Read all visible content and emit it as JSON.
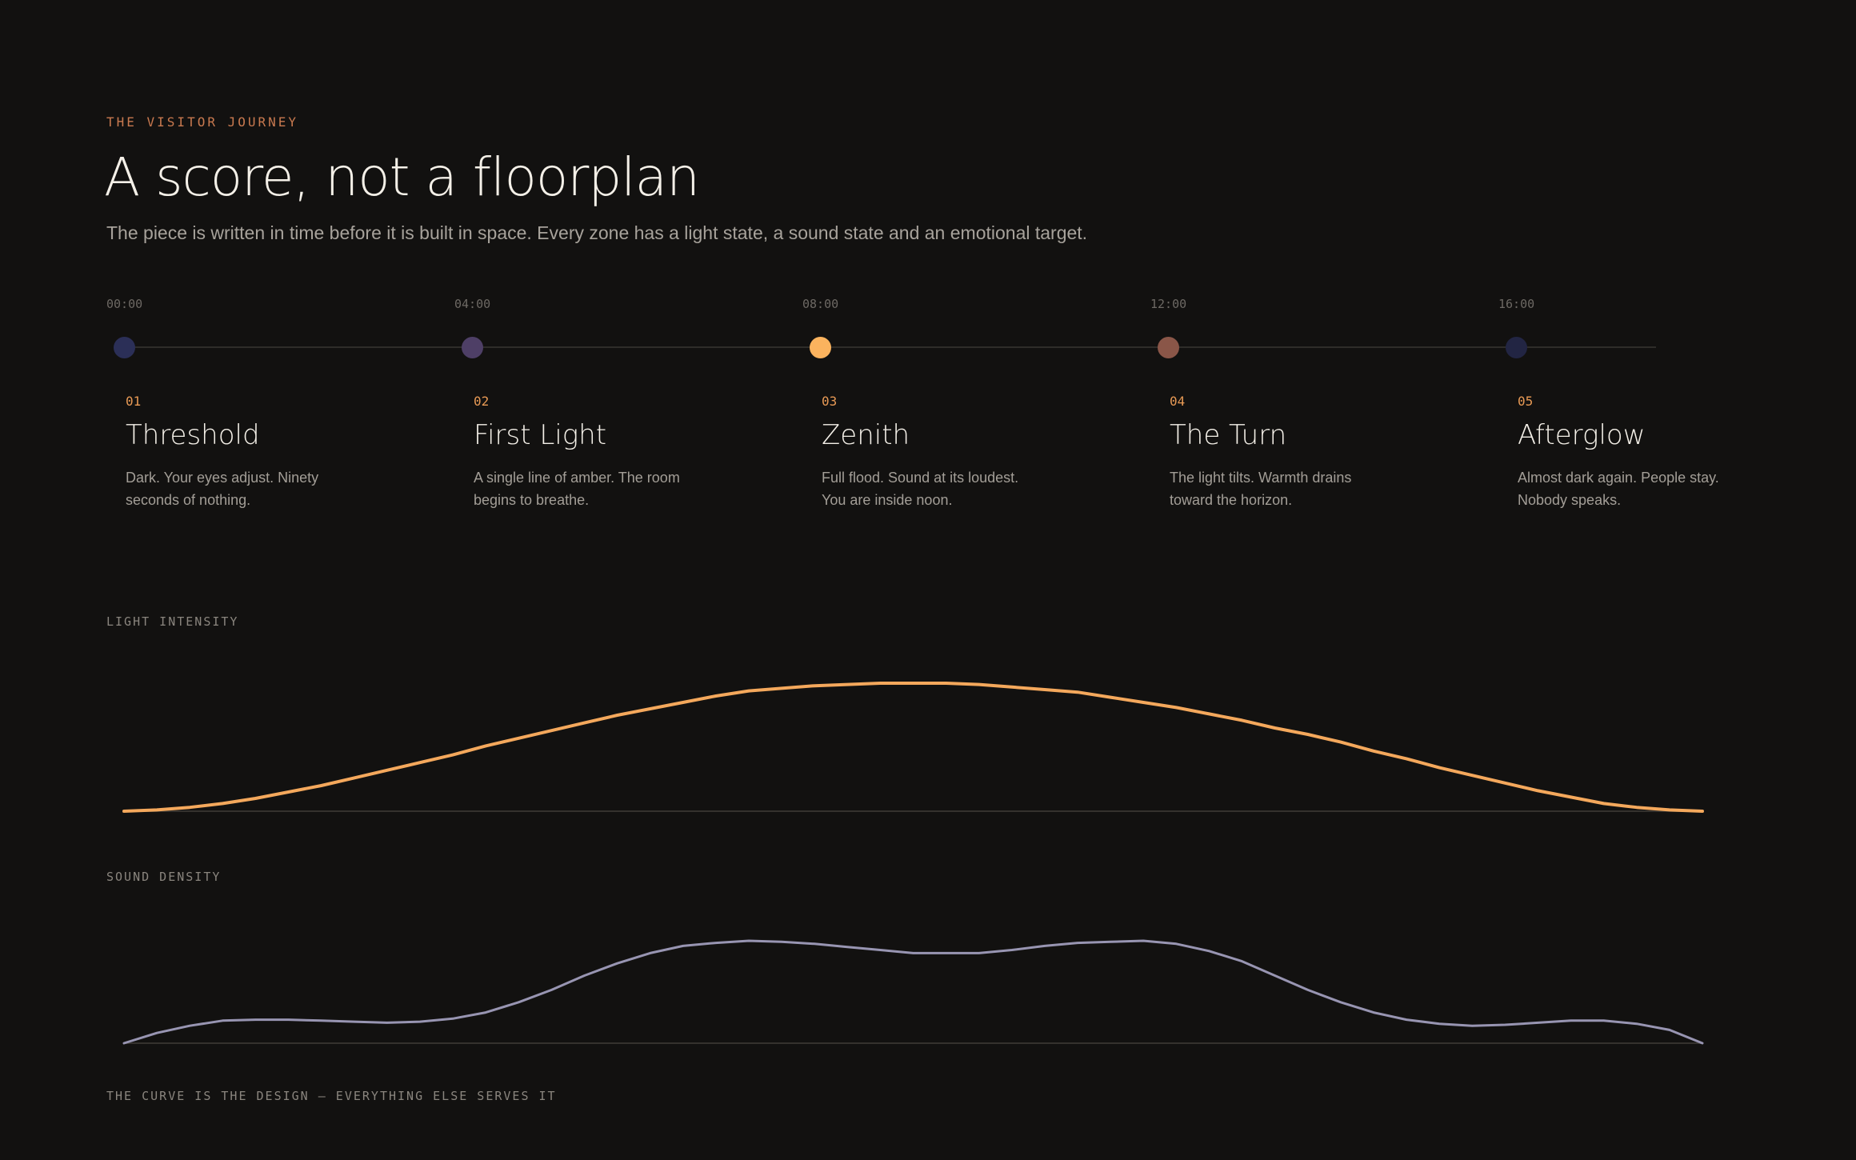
{
  "header": {
    "eyebrow": "THE VISITOR JOURNEY",
    "title": "A score, not a floorplan",
    "subtitle": "The piece is written in time before it is built in space. Every zone has a light state, a sound state and an emotional target."
  },
  "timeline": {
    "times": [
      "00:00",
      "04:00",
      "08:00",
      "12:00",
      "16:00"
    ],
    "stages": [
      {
        "num": "01",
        "name": "Threshold",
        "desc": "Dark. Your eyes adjust. Ninety seconds of nothing.",
        "color": "#2b2f57"
      },
      {
        "num": "02",
        "name": "First Light",
        "desc": "A single line of amber. The room begins to breathe.",
        "color": "#4e3f66"
      },
      {
        "num": "03",
        "name": "Zenith",
        "desc": "Full flood. Sound at its loudest. You are inside noon.",
        "color": "#fbb35e"
      },
      {
        "num": "04",
        "name": "The Turn",
        "desc": "The light tilts. Warmth drains toward the horizon.",
        "color": "#8a5648"
      },
      {
        "num": "05",
        "name": "Afterglow",
        "desc": "Almost dark again. People stay. Nobody speaks.",
        "color": "#222543"
      }
    ]
  },
  "light": {
    "label": "LIGHT INTENSITY",
    "color": "#f4a85c"
  },
  "sound": {
    "label": "SOUND DENSITY",
    "color": "#9895b2"
  },
  "footer": "THE CURVE IS THE DESIGN – EVERYTHING ELSE SERVES IT",
  "chart_data": [
    {
      "type": "line",
      "series": [
        {
          "values": [
            0,
            0.01,
            0.03,
            0.06,
            0.1,
            0.15,
            0.2,
            0.26,
            0.32,
            0.38,
            0.44,
            0.51,
            0.57,
            0.63,
            0.69,
            0.75,
            0.8,
            0.85,
            0.9,
            0.94,
            0.96,
            0.98,
            0.99,
            1.0,
            1.0,
            1.0,
            0.99,
            0.97,
            0.95,
            0.93,
            0.89,
            0.85,
            0.81,
            0.76,
            0.71,
            0.65,
            0.6,
            0.54,
            0.47,
            0.41,
            0.34,
            0.28,
            0.22,
            0.16,
            0.11,
            0.06,
            0.03,
            0.01,
            0
          ]
        }
      ],
      "ylim": [
        0,
        1
      ]
    },
    {
      "type": "line",
      "series": [
        {
          "values": [
            0,
            0.1,
            0.17,
            0.22,
            0.23,
            0.23,
            0.22,
            0.21,
            0.2,
            0.21,
            0.24,
            0.3,
            0.4,
            0.52,
            0.66,
            0.78,
            0.88,
            0.95,
            0.98,
            1.0,
            0.99,
            0.97,
            0.94,
            0.91,
            0.88,
            0.88,
            0.88,
            0.91,
            0.95,
            0.98,
            0.99,
            1.0,
            0.97,
            0.9,
            0.8,
            0.66,
            0.52,
            0.4,
            0.3,
            0.23,
            0.19,
            0.17,
            0.18,
            0.2,
            0.22,
            0.22,
            0.19,
            0.13,
            0.0
          ]
        }
      ],
      "ylim": [
        0,
        1
      ]
    }
  ]
}
